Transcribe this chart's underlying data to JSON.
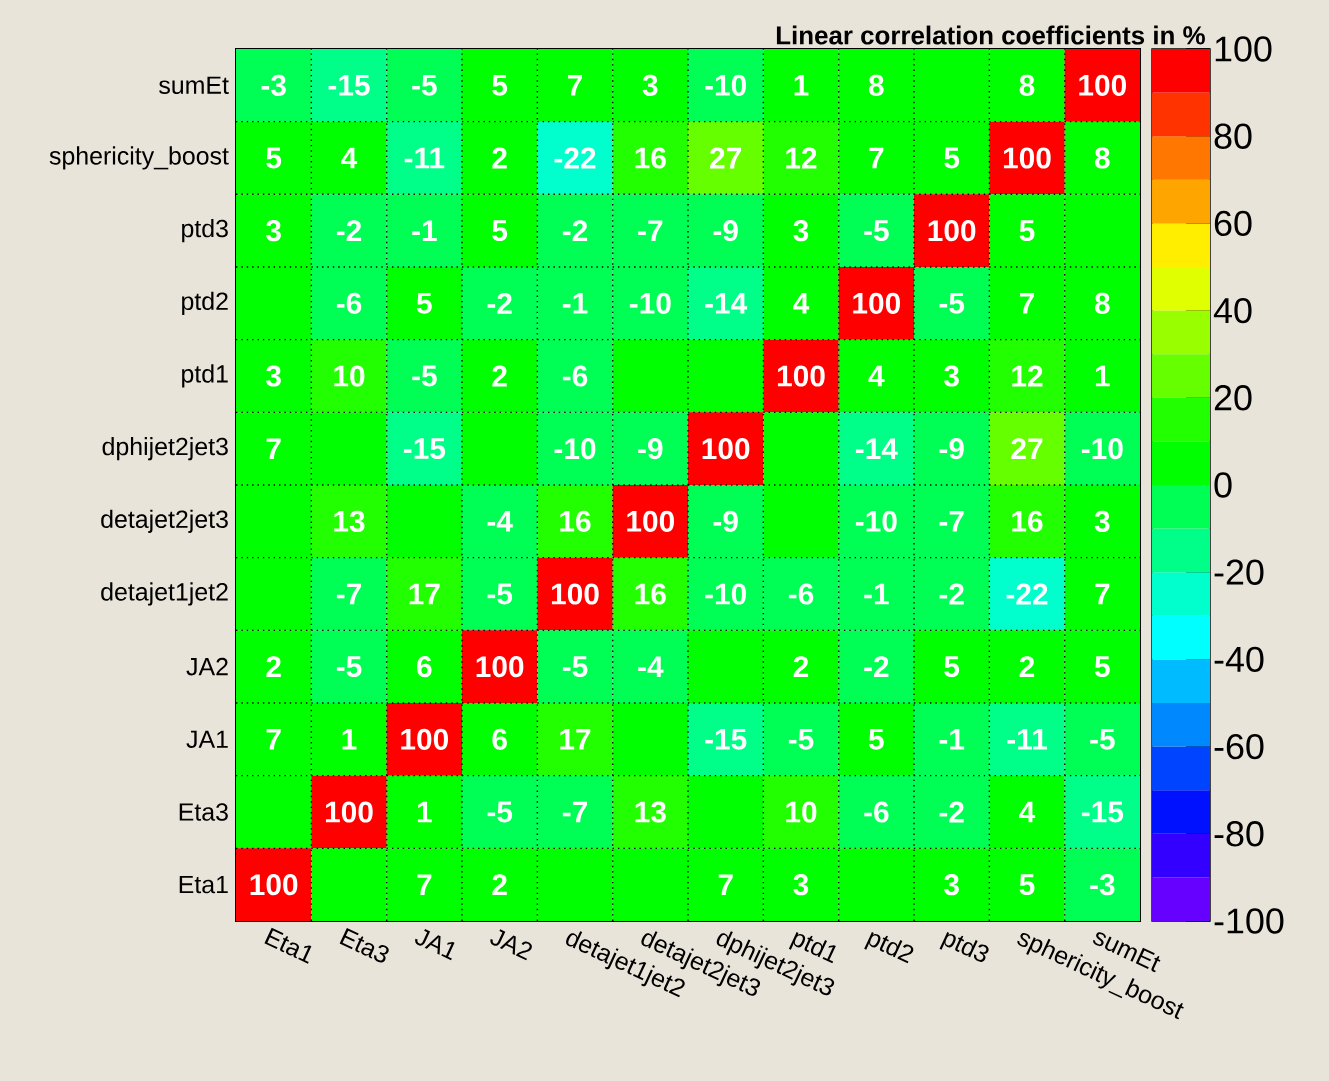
{
  "chart_data": {
    "type": "heatmap",
    "title": "Linear correlation coefficients in %",
    "categories": [
      "Eta1",
      "Eta3",
      "JA1",
      "JA2",
      "detajet1jet2",
      "detajet2jet3",
      "dphijet2jet3",
      "ptd1",
      "ptd2",
      "ptd3",
      "sphericity_boost",
      "sumEt"
    ],
    "y_categories": [
      "sumEt",
      "sphericity_boost",
      "ptd3",
      "ptd2",
      "ptd1",
      "dphijet2jet3",
      "detajet2jet3",
      "detajet1jet2",
      "JA2",
      "JA1",
      "Eta3",
      "Eta1"
    ],
    "cells": [
      [
        -3,
        -15,
        -5,
        5,
        7,
        3,
        -10,
        1,
        8,
        0,
        8,
        100
      ],
      [
        5,
        4,
        -11,
        2,
        -22,
        16,
        27,
        12,
        7,
        5,
        100,
        8
      ],
      [
        3,
        -2,
        -1,
        5,
        -2,
        -7,
        -9,
        3,
        -5,
        100,
        5,
        0
      ],
      [
        0,
        -6,
        5,
        -2,
        -1,
        -10,
        -14,
        4,
        100,
        -5,
        7,
        8
      ],
      [
        3,
        10,
        -5,
        2,
        -6,
        0,
        0,
        100,
        4,
        3,
        12,
        1
      ],
      [
        7,
        0,
        -15,
        0,
        -10,
        -9,
        100,
        0,
        -14,
        -9,
        27,
        -10
      ],
      [
        0,
        13,
        0,
        -4,
        16,
        100,
        -9,
        0,
        -10,
        -7,
        16,
        3
      ],
      [
        0,
        -7,
        17,
        -5,
        100,
        16,
        -10,
        -6,
        -1,
        -2,
        -22,
        7
      ],
      [
        2,
        -5,
        6,
        100,
        -5,
        -4,
        0,
        2,
        -2,
        5,
        2,
        5
      ],
      [
        7,
        1,
        100,
        6,
        17,
        0,
        -15,
        -5,
        5,
        -1,
        -11,
        -5
      ],
      [
        0,
        100,
        1,
        -5,
        -7,
        13,
        0,
        10,
        -6,
        -2,
        4,
        -15
      ],
      [
        100,
        0,
        7,
        2,
        0,
        0,
        7,
        3,
        0,
        3,
        5,
        -3
      ]
    ],
    "cell_labels": [
      [
        "-3",
        "-15",
        "-5",
        "5",
        "7",
        "3",
        "-10",
        "1",
        "8",
        null,
        "8",
        "100"
      ],
      [
        "5",
        "4",
        "-11",
        "2",
        "-22",
        "16",
        "27",
        "12",
        "7",
        "5",
        "100",
        "8"
      ],
      [
        "3",
        "-2",
        "-1",
        "5",
        "-2",
        "-7",
        "-9",
        "3",
        "-5",
        "100",
        "5",
        null
      ],
      [
        null,
        "-6",
        "5",
        "-2",
        "-1",
        "-10",
        "-14",
        "4",
        "100",
        "-5",
        "7",
        "8"
      ],
      [
        "3",
        "10",
        "-5",
        "2",
        "-6",
        null,
        null,
        "100",
        "4",
        "3",
        "12",
        "1"
      ],
      [
        "7",
        null,
        "-15",
        null,
        "-10",
        "-9",
        "100",
        null,
        "-14",
        "-9",
        "27",
        "-10"
      ],
      [
        null,
        "13",
        null,
        "-4",
        "16",
        "100",
        "-9",
        null,
        "-10",
        "-7",
        "16",
        "3"
      ],
      [
        null,
        "-7",
        "17",
        "-5",
        "100",
        "16",
        "-10",
        "-6",
        "-1",
        "-2",
        "-22",
        "7"
      ],
      [
        "2",
        "-5",
        "6",
        "100",
        "-5",
        "-4",
        null,
        "2",
        "-2",
        "5",
        "2",
        "5"
      ],
      [
        "7",
        "1",
        "100",
        "6",
        "17",
        null,
        "-15",
        "-5",
        "5",
        "-1",
        "-11",
        "-5"
      ],
      [
        null,
        "100",
        "1",
        "-5",
        "-7",
        "13",
        null,
        "10",
        "-6",
        "-2",
        "4",
        "-15"
      ],
      [
        "100",
        null,
        "7",
        "2",
        null,
        null,
        "7",
        "3",
        null,
        "3",
        "5",
        "-3"
      ]
    ],
    "clim": [
      -100,
      100
    ],
    "cticks": [
      -100,
      -80,
      -60,
      -40,
      -20,
      0,
      20,
      40,
      60,
      80,
      100
    ],
    "grid": true
  }
}
